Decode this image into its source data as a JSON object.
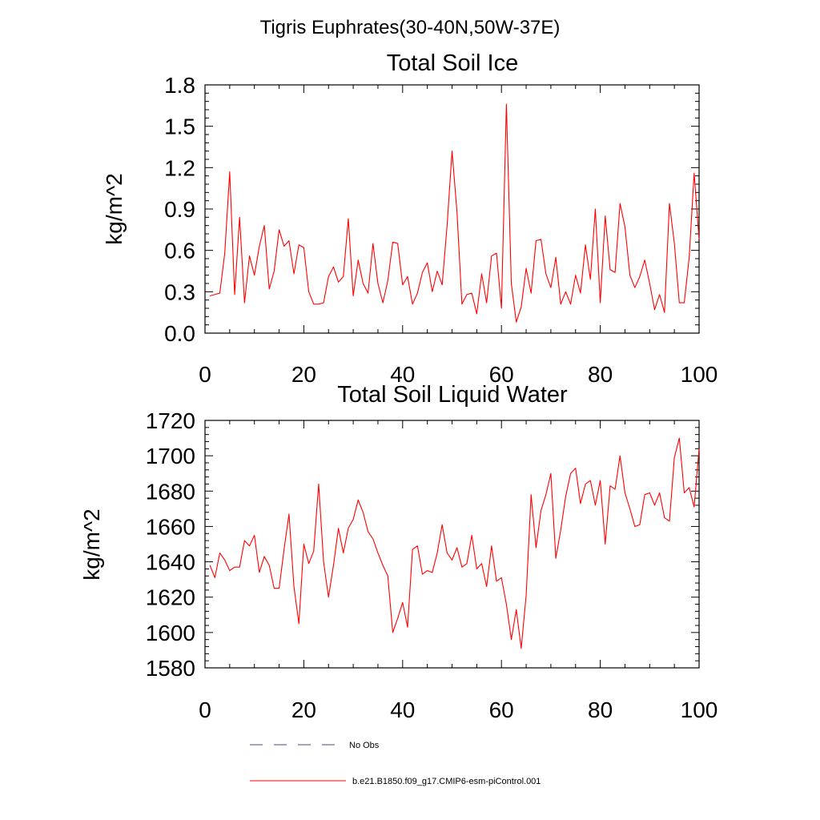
{
  "figure": {
    "title": "Tigris Euphrates(30-40N,50W-37E)",
    "legend": {
      "entries": [
        {
          "label": "No Obs",
          "style": "dashed",
          "color": "#4a4a7a"
        },
        {
          "label": "b.e21.B1850.f09_g17.CMIP6-esm-piControl.001",
          "style": "solid",
          "color": "#ff0000"
        }
      ],
      "placement": "bottom"
    }
  },
  "chart_data": [
    {
      "type": "line",
      "title": "Total Soil Ice",
      "xlabel": "",
      "ylabel": "kg/m^2",
      "xlim": [
        0,
        100
      ],
      "ylim": [
        0,
        1.8
      ],
      "x_ticks": [
        "0",
        "20",
        "40",
        "60",
        "80",
        "100"
      ],
      "y_ticks": [
        "0.0",
        "0.3",
        "0.6",
        "0.9",
        "1.2",
        "1.5",
        "1.8"
      ],
      "grid": false,
      "series": [
        {
          "color": "#ff0000",
          "x_start": 1,
          "values": [
            0.27,
            0.28,
            0.29,
            0.58,
            1.17,
            0.28,
            0.84,
            0.22,
            0.56,
            0.42,
            0.63,
            0.78,
            0.32,
            0.45,
            0.75,
            0.63,
            0.67,
            0.43,
            0.64,
            0.62,
            0.3,
            0.21,
            0.21,
            0.22,
            0.41,
            0.48,
            0.37,
            0.41,
            0.83,
            0.27,
            0.53,
            0.36,
            0.29,
            0.65,
            0.36,
            0.22,
            0.38,
            0.66,
            0.65,
            0.35,
            0.41,
            0.21,
            0.29,
            0.44,
            0.51,
            0.3,
            0.45,
            0.35,
            0.78,
            1.32,
            0.88,
            0.21,
            0.28,
            0.29,
            0.14,
            0.43,
            0.22,
            0.56,
            0.58,
            0.18,
            1.66,
            0.36,
            0.08,
            0.19,
            0.47,
            0.29,
            0.67,
            0.68,
            0.43,
            0.33,
            0.55,
            0.21,
            0.3,
            0.21,
            0.42,
            0.29,
            0.64,
            0.39,
            0.9,
            0.22,
            0.85,
            0.46,
            0.44,
            0.94,
            0.77,
            0.42,
            0.33,
            0.41,
            0.53,
            0.36,
            0.17,
            0.28,
            0.15,
            0.94,
            0.65,
            0.22,
            0.22,
            0.55,
            1.16,
            0.68
          ]
        }
      ]
    },
    {
      "type": "line",
      "title": "Total Soil Liquid Water",
      "xlabel": "",
      "ylabel": "kg/m^2",
      "xlim": [
        0,
        100
      ],
      "ylim": [
        1580,
        1720
      ],
      "x_ticks": [
        "0",
        "20",
        "40",
        "60",
        "80",
        "100"
      ],
      "y_ticks": [
        "1580",
        "1600",
        "1620",
        "1640",
        "1660",
        "1680",
        "1700",
        "1720"
      ],
      "grid": false,
      "series": [
        {
          "color": "#ff0000",
          "x_start": 1,
          "values": [
            1638,
            1631,
            1645,
            1641,
            1635,
            1637,
            1637,
            1652,
            1649,
            1655,
            1634,
            1643,
            1638,
            1625,
            1625,
            1647,
            1667,
            1626,
            1605,
            1650,
            1639,
            1646,
            1684,
            1640,
            1620,
            1638,
            1659,
            1645,
            1659,
            1664,
            1675,
            1668,
            1657,
            1653,
            1645,
            1638,
            1632,
            1600,
            1608,
            1617,
            1603,
            1647,
            1649,
            1633,
            1635,
            1634,
            1645,
            1661,
            1645,
            1641,
            1648,
            1637,
            1639,
            1655,
            1636,
            1639,
            1626,
            1649,
            1629,
            1631,
            1616,
            1596,
            1613,
            1591,
            1621,
            1678,
            1648,
            1669,
            1678,
            1690,
            1642,
            1658,
            1677,
            1690,
            1693,
            1673,
            1684,
            1686,
            1672,
            1686,
            1650,
            1683,
            1681,
            1700,
            1679,
            1670,
            1660,
            1661,
            1678,
            1679,
            1672,
            1679,
            1665,
            1663,
            1699,
            1710,
            1679,
            1682,
            1671,
            1704
          ]
        }
      ]
    }
  ]
}
